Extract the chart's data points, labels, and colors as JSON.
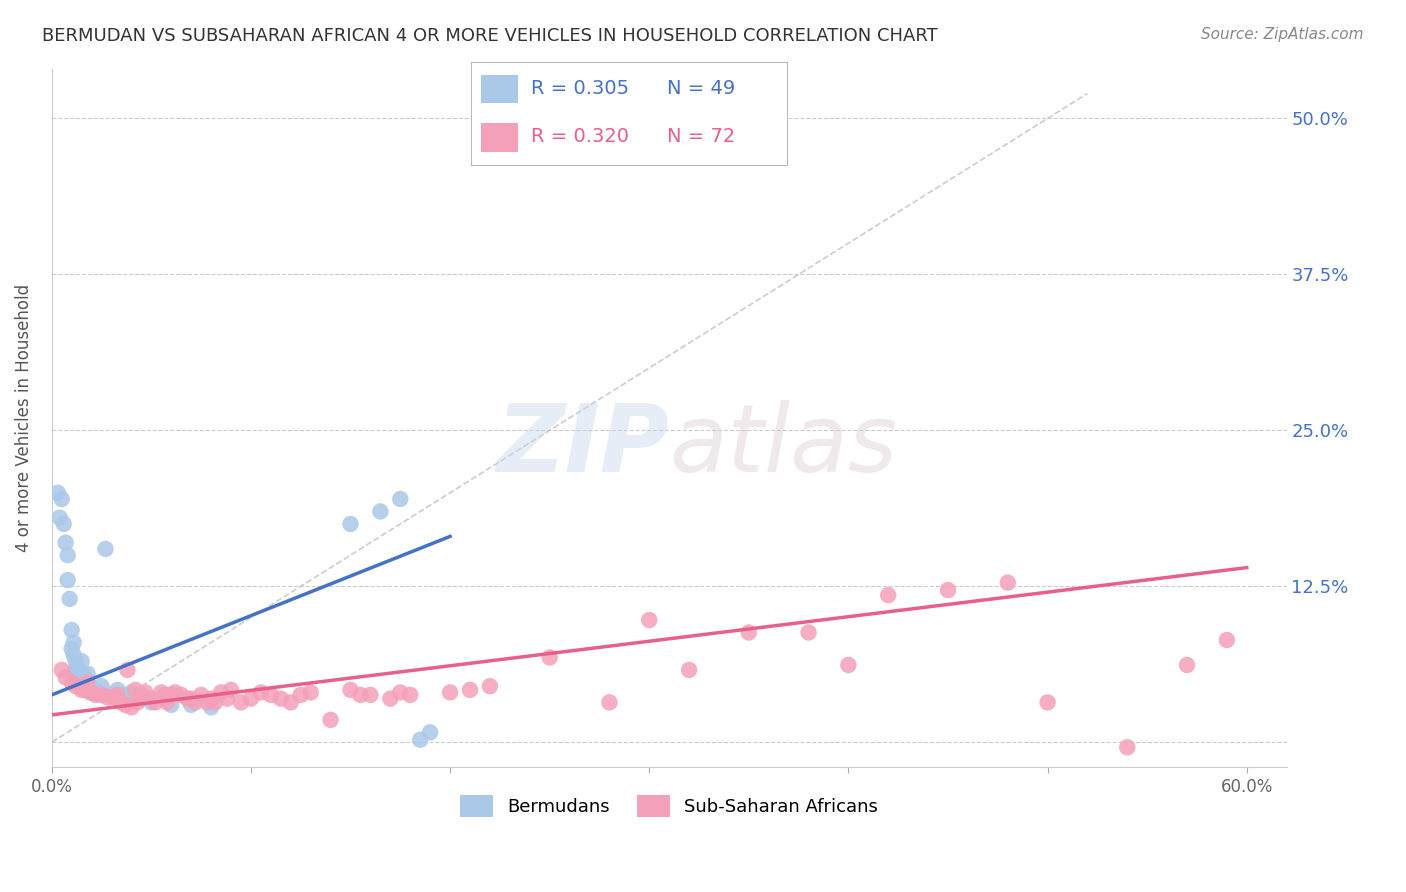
{
  "title": "BERMUDAN VS SUBSAHARAN AFRICAN 4 OR MORE VEHICLES IN HOUSEHOLD CORRELATION CHART",
  "source": "Source: ZipAtlas.com",
  "ylabel": "4 or more Vehicles in Household",
  "xlim": [
    0.0,
    0.62
  ],
  "ylim": [
    -0.02,
    0.54
  ],
  "xticks": [
    0.0,
    0.1,
    0.2,
    0.3,
    0.4,
    0.5,
    0.6
  ],
  "xticklabels": [
    "0.0%",
    "",
    "",
    "",
    "",
    "",
    "60.0%"
  ],
  "yticks": [
    0.0,
    0.125,
    0.25,
    0.375,
    0.5
  ],
  "yticklabels": [
    "",
    "12.5%",
    "25.0%",
    "37.5%",
    "50.0%"
  ],
  "grid_color": "#cccccc",
  "background_color": "#ffffff",
  "blue_trend_color": "#4472c4",
  "pink_trend_color": "#e8608a",
  "scatter_blue_color": "#aac8e8",
  "scatter_pink_color": "#f4a0b8",
  "legend_r1": "R = 0.305",
  "legend_n1": "N = 49",
  "legend_r2": "R = 0.320",
  "legend_n2": "N = 72",
  "blue_scatter_x": [
    0.003,
    0.004,
    0.005,
    0.006,
    0.007,
    0.008,
    0.008,
    0.009,
    0.01,
    0.01,
    0.011,
    0.011,
    0.012,
    0.012,
    0.013,
    0.013,
    0.014,
    0.014,
    0.015,
    0.015,
    0.016,
    0.016,
    0.017,
    0.017,
    0.018,
    0.018,
    0.019,
    0.019,
    0.02,
    0.021,
    0.022,
    0.023,
    0.025,
    0.026,
    0.027,
    0.03,
    0.033,
    0.036,
    0.04,
    0.045,
    0.05,
    0.06,
    0.07,
    0.08,
    0.15,
    0.165,
    0.175,
    0.185,
    0.19
  ],
  "blue_scatter_y": [
    0.2,
    0.18,
    0.195,
    0.175,
    0.16,
    0.15,
    0.13,
    0.115,
    0.09,
    0.075,
    0.08,
    0.07,
    0.065,
    0.058,
    0.06,
    0.055,
    0.058,
    0.05,
    0.052,
    0.065,
    0.05,
    0.055,
    0.05,
    0.045,
    0.048,
    0.055,
    0.045,
    0.04,
    0.042,
    0.04,
    0.042,
    0.04,
    0.045,
    0.038,
    0.155,
    0.038,
    0.042,
    0.038,
    0.04,
    0.035,
    0.032,
    0.03,
    0.03,
    0.028,
    0.175,
    0.185,
    0.195,
    0.002,
    0.008
  ],
  "pink_scatter_x": [
    0.005,
    0.007,
    0.01,
    0.012,
    0.015,
    0.017,
    0.018,
    0.02,
    0.022,
    0.025,
    0.028,
    0.03,
    0.032,
    0.033,
    0.035,
    0.037,
    0.038,
    0.04,
    0.042,
    0.043,
    0.045,
    0.047,
    0.05,
    0.052,
    0.055,
    0.057,
    0.058,
    0.06,
    0.062,
    0.065,
    0.068,
    0.07,
    0.072,
    0.075,
    0.078,
    0.08,
    0.082,
    0.085,
    0.088,
    0.09,
    0.095,
    0.1,
    0.105,
    0.11,
    0.115,
    0.12,
    0.125,
    0.13,
    0.14,
    0.15,
    0.155,
    0.16,
    0.17,
    0.175,
    0.18,
    0.2,
    0.21,
    0.22,
    0.25,
    0.28,
    0.3,
    0.32,
    0.35,
    0.38,
    0.4,
    0.42,
    0.45,
    0.48,
    0.5,
    0.54,
    0.57,
    0.59
  ],
  "pink_scatter_y": [
    0.058,
    0.052,
    0.048,
    0.045,
    0.042,
    0.042,
    0.048,
    0.04,
    0.038,
    0.038,
    0.036,
    0.036,
    0.036,
    0.038,
    0.032,
    0.03,
    0.058,
    0.028,
    0.042,
    0.032,
    0.038,
    0.04,
    0.035,
    0.032,
    0.04,
    0.038,
    0.032,
    0.038,
    0.04,
    0.038,
    0.035,
    0.035,
    0.032,
    0.038,
    0.032,
    0.035,
    0.032,
    0.04,
    0.035,
    0.042,
    0.032,
    0.035,
    0.04,
    0.038,
    0.035,
    0.032,
    0.038,
    0.04,
    0.018,
    0.042,
    0.038,
    0.038,
    0.035,
    0.04,
    0.038,
    0.04,
    0.042,
    0.045,
    0.068,
    0.032,
    0.098,
    0.058,
    0.088,
    0.088,
    0.062,
    0.118,
    0.122,
    0.128,
    0.032,
    -0.004,
    0.062,
    0.082
  ],
  "blue_line_x": [
    0.0,
    0.2
  ],
  "blue_line_y": [
    0.038,
    0.165
  ],
  "pink_line_x": [
    0.0,
    0.6
  ],
  "pink_line_y": [
    0.022,
    0.14
  ],
  "dashed_line_x": [
    0.0,
    0.52
  ],
  "dashed_line_y": [
    0.0,
    0.52
  ]
}
